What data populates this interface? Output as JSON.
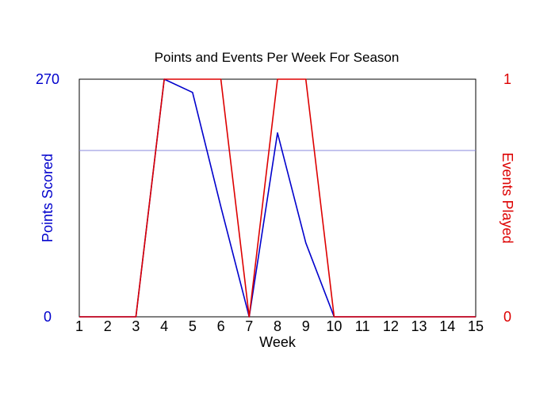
{
  "chart_data": {
    "type": "line",
    "title": "Points and Events Per Week For Season",
    "xlabel": "Week",
    "ylabel_left": "Points Scored",
    "ylabel_right": "Events Played",
    "x": [
      1,
      2,
      3,
      4,
      5,
      6,
      7,
      8,
      9,
      10,
      11,
      12,
      13,
      14,
      15
    ],
    "xlim": [
      1,
      15
    ],
    "ylim_left": [
      0,
      270
    ],
    "ylim_right": [
      0,
      1
    ],
    "left_tick_labels": [
      "0",
      "270"
    ],
    "right_tick_labels": [
      "0",
      "1"
    ],
    "reference_line": {
      "axis": "left",
      "value": 189,
      "color": "#8888dd"
    },
    "series": [
      {
        "name": "Points Scored",
        "axis": "left",
        "color": "#0000cc",
        "values": [
          0,
          0,
          0,
          270,
          255,
          125,
          0,
          209,
          84,
          0,
          0,
          0,
          0,
          0,
          0
        ]
      },
      {
        "name": "Events Played",
        "axis": "right",
        "color": "#dd0000",
        "values": [
          0,
          0,
          0,
          1,
          1,
          1,
          0,
          1,
          1,
          0,
          0,
          0,
          0,
          0,
          0
        ]
      }
    ],
    "grid": false
  }
}
